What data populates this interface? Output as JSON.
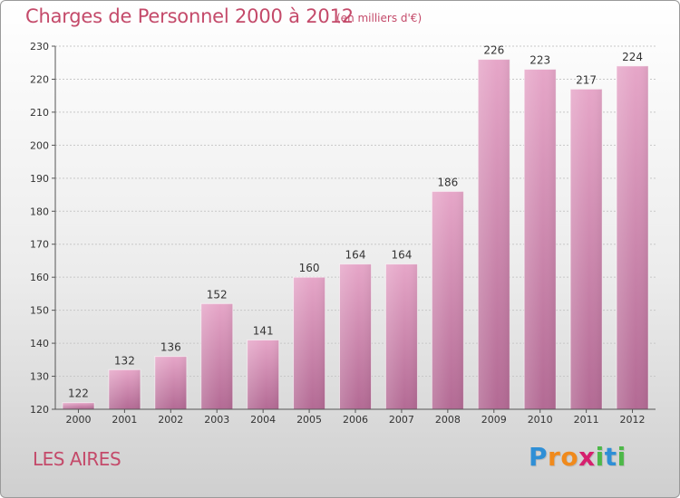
{
  "title": "Charges de Personnel 2000 à 2012",
  "subtitle": "(en milliers d'€)",
  "commune": "LES AIRES",
  "logo": {
    "letters": [
      "P",
      "r",
      "o",
      "x",
      "i",
      "t",
      "i"
    ],
    "colors": [
      "#2f8fd6",
      "#f08a1c",
      "#f08a1c",
      "#d6206e",
      "#4db848",
      "#2f8fd6",
      "#4db848"
    ]
  },
  "chart_data": {
    "type": "bar",
    "categories": [
      "2000",
      "2001",
      "2002",
      "2003",
      "2004",
      "2005",
      "2006",
      "2007",
      "2008",
      "2009",
      "2010",
      "2011",
      "2012"
    ],
    "values": [
      122,
      132,
      136,
      152,
      141,
      160,
      164,
      164,
      186,
      226,
      223,
      217,
      224
    ],
    "title": "Charges de Personnel 2000 à 2012",
    "xlabel": "",
    "ylabel": "",
    "ylim": [
      120,
      230
    ],
    "yticks": [
      120,
      130,
      140,
      150,
      160,
      170,
      180,
      190,
      200,
      210,
      220,
      230
    ],
    "bar_color": "#d47fa8"
  }
}
